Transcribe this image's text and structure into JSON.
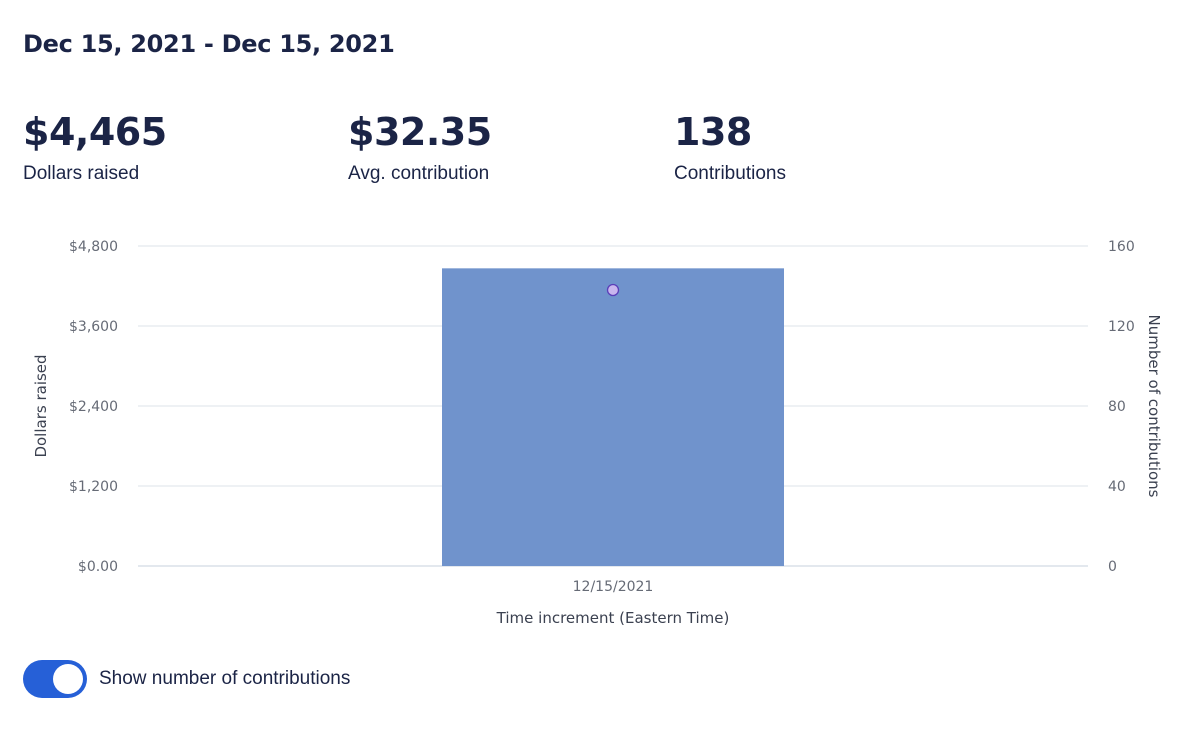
{
  "header": {
    "date_range": "Dec 15, 2021 - Dec 15, 2021"
  },
  "stats": [
    {
      "value": "$4,465",
      "label": "Dollars raised"
    },
    {
      "value": "$32.35",
      "label": "Avg. contribution"
    },
    {
      "value": "138",
      "label": "Contributions"
    }
  ],
  "chart_data": {
    "type": "bar",
    "categories": [
      "12/15/2021"
    ],
    "series": [
      {
        "values": [
          4465
        ],
        "axis": "left",
        "mark": "bar",
        "color": "#7093cc"
      },
      {
        "values": [
          138
        ],
        "axis": "right",
        "mark": "point",
        "color": "#c9b6ee"
      }
    ],
    "xlabel": "Time increment (Eastern Time)",
    "ylabel": "Dollars raised",
    "y2label": "Number of contributions",
    "ylim": [
      0,
      4800
    ],
    "y2lim": [
      0,
      160
    ],
    "yticks": [
      "$0.00",
      "$1,200",
      "$2,400",
      "$3,600",
      "$4,800"
    ],
    "y2ticks": [
      "0",
      "40",
      "80",
      "120",
      "160"
    ],
    "grid": true
  },
  "toggle": {
    "label": "Show number of contributions",
    "on": true,
    "color": "#2660d7"
  }
}
